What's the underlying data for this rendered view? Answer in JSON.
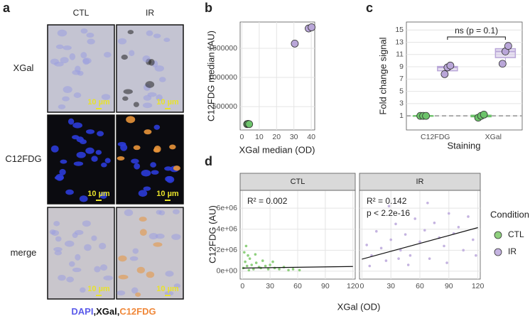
{
  "panel_a": {
    "label": "a",
    "columns": [
      "CTL",
      "IR"
    ],
    "rows": [
      "XGal",
      "C12FDG",
      "merge"
    ],
    "scale_bar": "10 µm",
    "legend": [
      "DAPI",
      ",",
      "XGal",
      ",",
      "C12FDG"
    ],
    "legend_colors": [
      "#5b5bea",
      "#111111",
      "#111111",
      "#111111",
      "#f0883a"
    ]
  },
  "chart_data": [
    {
      "type": "scatter",
      "panel": "b",
      "x_label": "XGal median (OD)",
      "y_label": "C12FDG median (AU)",
      "xlim": [
        -1,
        42
      ],
      "ylim": [
        100000,
        1950000
      ],
      "xticks": [
        0,
        10,
        20,
        30,
        40
      ],
      "yticks": [
        500000,
        1000000,
        1500000
      ],
      "grid": true,
      "series": [
        {
          "name": "CTL",
          "color": "#6cc36a",
          "x": [
            3,
            3.6,
            4.2
          ],
          "values": [
            200000,
            205000,
            200000
          ]
        },
        {
          "name": "IR",
          "color": "#b9a6d8",
          "x": [
            30.5,
            38.5,
            40.2
          ],
          "values": [
            1580000,
            1840000,
            1860000
          ]
        }
      ]
    },
    {
      "type": "box",
      "panel": "c",
      "x_label": "Staining",
      "y_label": "Fold change signal",
      "categories": [
        "C12FDG",
        "XGal"
      ],
      "ylim": [
        -1.3,
        16.3
      ],
      "yticks": [
        1,
        3,
        5,
        7,
        9,
        11,
        13,
        15
      ],
      "grid": true,
      "hline": 1,
      "annotation": "ns (p = 0.1)",
      "series": [
        {
          "name": "CTL",
          "color": "#6cc36a",
          "boxes": [
            {
              "min": 1,
              "q1": 1,
              "median": 1,
              "q3": 1,
              "max": 1
            },
            {
              "min": 0.7,
              "q1": 0.85,
              "median": 1,
              "q3": 1.1,
              "max": 1.2
            }
          ],
          "points": [
            [
              1,
              1,
              1
            ],
            [
              0.7,
              1,
              1.2
            ]
          ]
        },
        {
          "name": "IR",
          "color": "#b9a6d8",
          "boxes": [
            {
              "min": 7.8,
              "q1": 8.35,
              "median": 8.9,
              "q3": 9.05,
              "max": 9.2
            },
            {
              "min": 9.5,
              "q1": 10.5,
              "median": 11.5,
              "q3": 11.95,
              "max": 12.4
            }
          ],
          "points": [
            [
              7.8,
              8.9,
              9.2
            ],
            [
              9.5,
              11.5,
              12.4
            ]
          ]
        }
      ]
    },
    {
      "type": "scatter",
      "panel": "d",
      "x_label": "XGal (OD)",
      "y_label": "C12FDG (AU)",
      "legend_title": "Condition",
      "xlim": [
        -2.5,
        122.5
      ],
      "ylim": [
        -750000,
        7700000
      ],
      "xticks": [
        0,
        30,
        60,
        90,
        120
      ],
      "yticks": [
        {
          "value": 0,
          "label": "0e+00"
        },
        {
          "value": 2000000,
          "label": "2e+06"
        },
        {
          "value": 4000000,
          "label": "4e+06"
        },
        {
          "value": 6000000,
          "label": "6e+06"
        }
      ],
      "grid": true,
      "facets": [
        {
          "strip": "CTL",
          "annotations": [
            "R² = 0.002"
          ],
          "fit": {
            "x": [
              0,
              120
            ],
            "values": [
              300000,
              450000
            ]
          },
          "series": [
            {
              "name": "CTL",
              "color": "#8fd07e",
              "x": [
                2,
                3,
                5,
                1,
                8,
                10,
                12,
                4,
                15,
                18,
                20,
                22,
                25,
                28,
                30,
                35,
                40,
                45,
                50,
                6,
                7,
                14,
                33,
                55,
                62
              ],
              "values": [
                1800000,
                900000,
                500000,
                300000,
                1200000,
                600000,
                200000,
                2400000,
                800000,
                400000,
                300000,
                1000000,
                500000,
                200000,
                600000,
                300000,
                200000,
                400000,
                100000,
                1500000,
                100000,
                1600000,
                900000,
                200000,
                100000
              ]
            }
          ]
        },
        {
          "strip": "IR",
          "annotations": [
            "R² = 0.142",
            "p < 2.2e-16"
          ],
          "fit": {
            "x": [
              0,
              120
            ],
            "values": [
              1150000,
              4150000
            ]
          },
          "series": [
            {
              "name": "IR",
              "color": "#c4b3e0",
              "x": [
                5,
                10,
                15,
                20,
                25,
                30,
                35,
                40,
                45,
                50,
                55,
                60,
                65,
                70,
                75,
                80,
                85,
                90,
                95,
                100,
                105,
                110,
                115,
                8,
                28,
                48,
                68,
                88,
                118,
                38
              ],
              "values": [
                2500000,
                1500000,
                3800000,
                2200000,
                1000000,
                3000000,
                4500000,
                2000000,
                3500000,
                1500000,
                5000000,
                2800000,
                3900000,
                1200000,
                4600000,
                3200000,
                2400000,
                5500000,
                3600000,
                4200000,
                2000000,
                5200000,
                3000000,
                500000,
                6200000,
                600000,
                6500000,
                800000,
                1500000,
                1200000
              ]
            }
          ]
        }
      ]
    }
  ]
}
